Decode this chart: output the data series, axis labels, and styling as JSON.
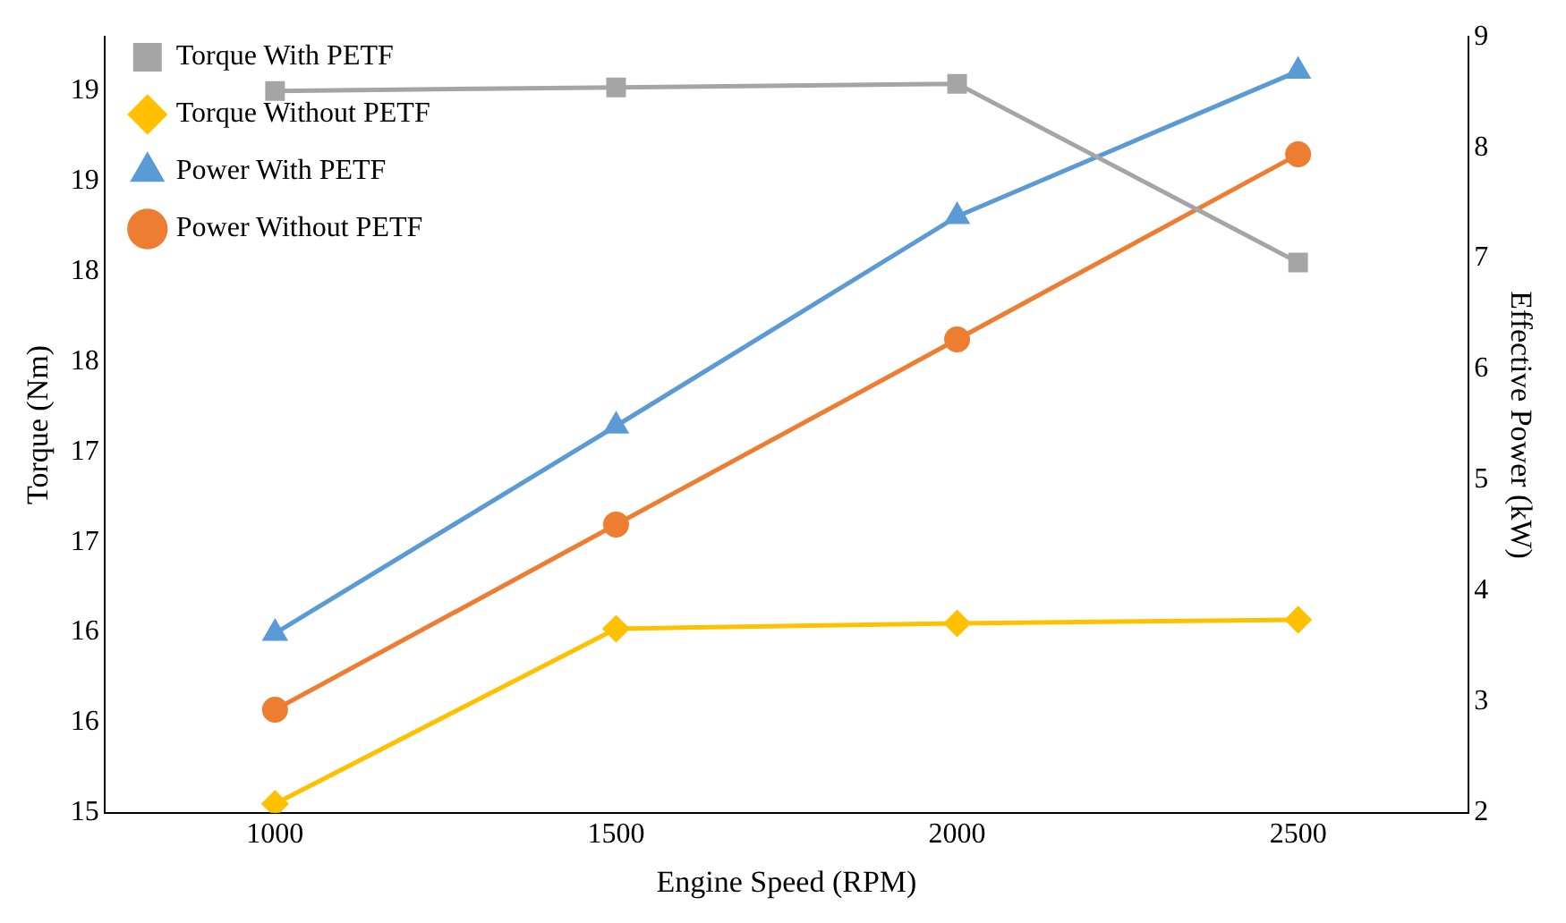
{
  "chart_data": {
    "type": "line",
    "xlabel": "Engine Speed (RPM)",
    "ylabel": "Torque (Nm)",
    "y2label": "Effective Power (kW)",
    "categories": [
      "1000",
      "1500",
      "2000",
      "2500"
    ],
    "series": [
      {
        "name": "Torque With PETF",
        "color": "#a5a5a5",
        "marker": "square",
        "values": [
          19.0,
          19.02,
          19.04,
          18.05
        ]
      },
      {
        "name": "Torque Without PETF",
        "color": "#ffc000",
        "marker": "diamond",
        "values": [
          15.05,
          16.02,
          16.05,
          16.07
        ]
      },
      {
        "name": "Power With PETF",
        "color": "#5b9bd5",
        "marker": "triangle",
        "axis": "y2",
        "values": [
          3.62,
          5.49,
          7.38,
          8.69
        ]
      },
      {
        "name": "Power Without PETF",
        "color": "#ed7d31",
        "marker": "circle",
        "axis": "y2",
        "values": [
          2.93,
          4.6,
          6.27,
          7.94
        ]
      }
    ],
    "ylim": [
      15,
      19.3
    ],
    "yticks": [
      15,
      {
        "value": 15.5,
        "label": "16"
      },
      16,
      {
        "value": 16.5,
        "label": "17"
      },
      17,
      {
        "value": 17.5,
        "label": "18"
      },
      18,
      {
        "value": 18.5,
        "label": "19"
      },
      19
    ],
    "y2lim": [
      2,
      9
    ],
    "y2ticks": [
      2,
      3,
      4,
      5,
      6,
      7,
      8,
      9
    ],
    "grid": false,
    "legend": "top left",
    "line_style": "solid"
  }
}
